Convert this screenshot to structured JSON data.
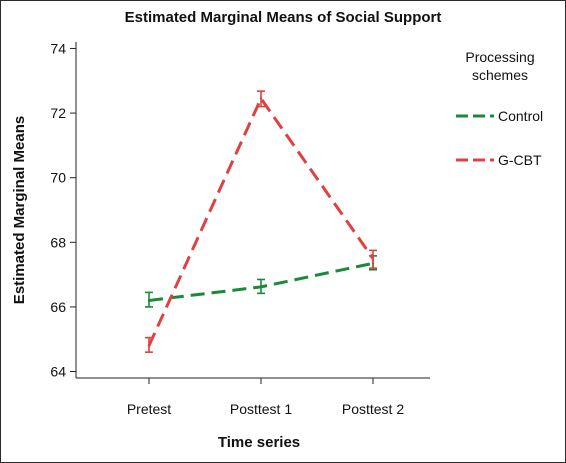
{
  "chart_data": {
    "type": "line",
    "title": "Estimated Marginal Means of Social Support",
    "xlabel": "Time series",
    "ylabel": "Estimated Marginal Means",
    "categories": [
      "Pretest",
      "Posttest 1",
      "Posttest 2"
    ],
    "ylim": [
      63.8,
      74.2
    ],
    "yticks": [
      64,
      66,
      68,
      70,
      72,
      74
    ],
    "grid": false,
    "legend": {
      "title_lines": [
        "Processing",
        "schemes"
      ],
      "placement": "right"
    },
    "series": [
      {
        "name": "Control",
        "color": "#1a8a3a",
        "values": [
          66.2,
          66.62,
          67.35
        ],
        "error_low": [
          66.0,
          66.42,
          67.15
        ],
        "error_high": [
          66.45,
          66.85,
          67.58
        ]
      },
      {
        "name": "G-CBT",
        "color": "#e0403f",
        "values": [
          64.8,
          72.45,
          67.5
        ],
        "error_low": [
          64.6,
          72.2,
          67.2
        ],
        "error_high": [
          65.05,
          72.68,
          67.75
        ]
      }
    ]
  }
}
